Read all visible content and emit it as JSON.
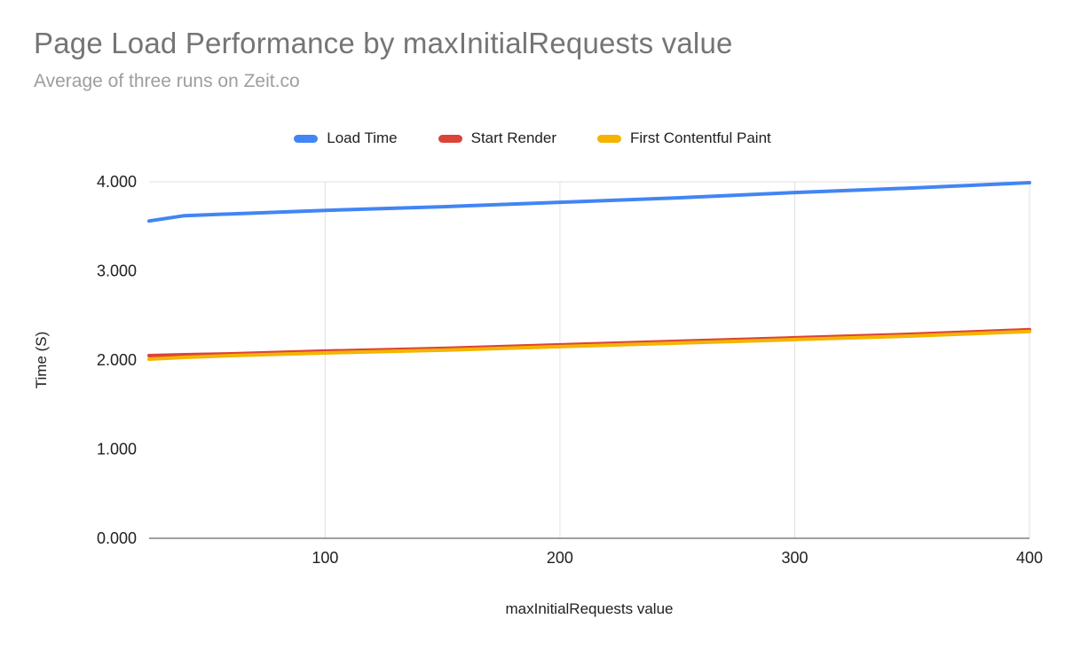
{
  "chart_data": {
    "type": "line",
    "title": "Page Load Performance by maxInitialRequests value",
    "subtitle": "Average of three runs on Zeit.co",
    "xlabel": "maxInitialRequests value",
    "ylabel": "Time (S)",
    "x": [
      25,
      40,
      60,
      100,
      150,
      200,
      250,
      300,
      350,
      400
    ],
    "series": [
      {
        "name": "Load Time",
        "color": "#4285f4",
        "values": [
          3.56,
          3.62,
          3.64,
          3.68,
          3.72,
          3.77,
          3.82,
          3.88,
          3.93,
          3.99
        ]
      },
      {
        "name": "Start Render",
        "color": "#db4437",
        "values": [
          2.05,
          2.06,
          2.07,
          2.1,
          2.13,
          2.17,
          2.21,
          2.25,
          2.29,
          2.34
        ]
      },
      {
        "name": "First Contentful Paint",
        "color": "#f4b400",
        "values": [
          2.01,
          2.03,
          2.05,
          2.08,
          2.11,
          2.15,
          2.19,
          2.23,
          2.27,
          2.32
        ]
      }
    ],
    "ylim": [
      0,
      4
    ],
    "yticks": [
      0,
      1,
      2,
      3,
      4
    ],
    "ytick_labels": [
      "0.000",
      "1.000",
      "2.000",
      "3.000",
      "4.000"
    ],
    "xticks": [
      100,
      200,
      300,
      400
    ],
    "xtick_labels": [
      "100",
      "200",
      "300",
      "400"
    ],
    "grid": "vertical-gridlines-plus-top-line",
    "legend_position": "top-center",
    "colors": {
      "title_text": "#757575",
      "subtitle_text": "#9e9e9e",
      "tick_text": "#202124",
      "gridline": "#e0e0e0",
      "axis_line": "#424242",
      "background": "#ffffff"
    }
  }
}
